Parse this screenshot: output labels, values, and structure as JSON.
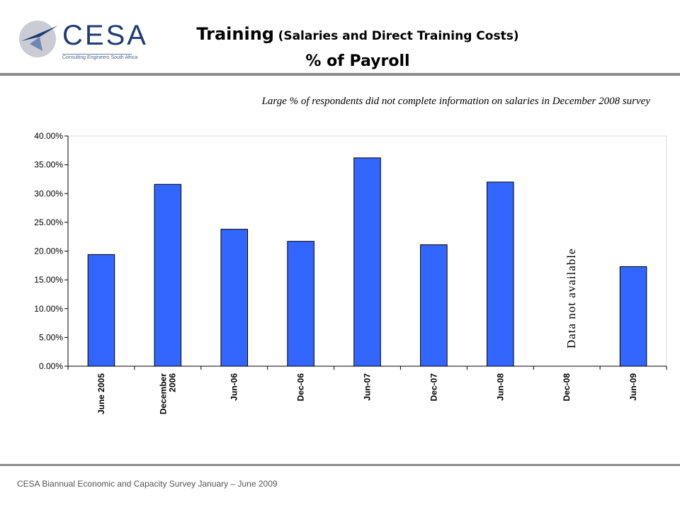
{
  "header": {
    "logo_text": "CESA",
    "logo_subtitle": "Consulting Engineers South Africa",
    "title_main": "Training",
    "title_sub": "(Salaries and Direct Training Costs)",
    "title_line2": "% of Payroll"
  },
  "note": "Large % of respondents did not complete information on salaries in December 2008 survey",
  "footer": "CESA Biannual Economic and Capacity Survey January – June 2009",
  "chart_data": {
    "type": "bar",
    "categories": [
      "June 2005",
      "December 2006",
      "Jun-06",
      "Dec-06",
      "Jun-07",
      "Dec-07",
      "Jun-08",
      "Dec-08",
      "Jun-09"
    ],
    "values": [
      19.4,
      31.6,
      23.8,
      21.7,
      36.2,
      21.1,
      32.0,
      null,
      17.3
    ],
    "yticks": [
      "0.00%",
      "5.00%",
      "10.00%",
      "15.00%",
      "20.00%",
      "25.00%",
      "30.00%",
      "35.00%",
      "40.00%"
    ],
    "ylim": [
      0,
      40
    ],
    "bar_color": "#3366ff",
    "annotation": "Data not available",
    "grid": false
  }
}
